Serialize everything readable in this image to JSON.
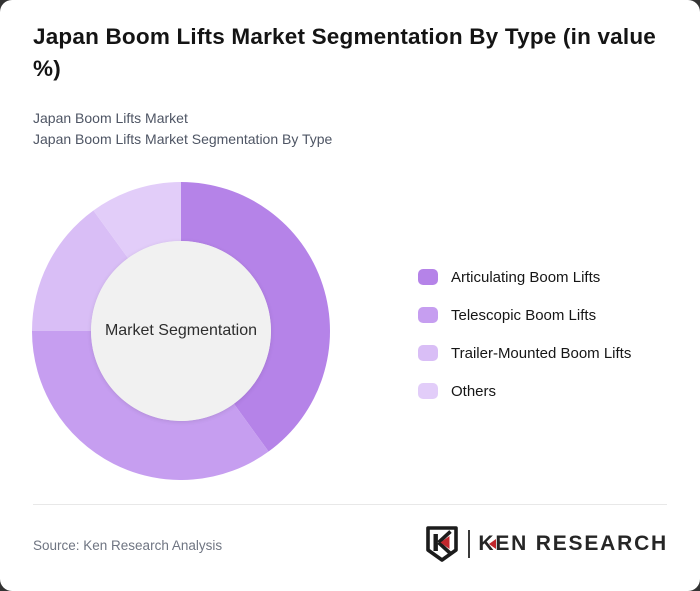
{
  "card": {
    "title": "Japan Boom Lifts Market Segmentation By Type (in value %)",
    "subtitle_line1": "Japan Boom Lifts Market",
    "subtitle_line2": "Japan Boom Lifts Market Segmentation By Type"
  },
  "chart_data": {
    "type": "pie",
    "style": "donut",
    "title": "Market Segmentation",
    "center_label": "Market Segmentation",
    "start_angle_deg": 0,
    "direction": "clockwise",
    "legend_position": "right",
    "inner_circle_color": "#f1f1f1",
    "segments": [
      {
        "label": "Articulating Boom Lifts",
        "value": 40,
        "color": "#b583e8"
      },
      {
        "label": "Telescopic Boom Lifts",
        "value": 35,
        "color": "#c69ef0"
      },
      {
        "label": "Trailer-Mounted Boom Lifts",
        "value": 15,
        "color": "#d9bef6"
      },
      {
        "label": "Others",
        "value": 10,
        "color": "#e2cdf9"
      }
    ]
  },
  "footer": {
    "source": "Source: Ken Research Analysis",
    "logo": {
      "text_k": "K",
      "text_rest": "EN RESEARCH",
      "brand_red": "#c1272d",
      "ink": "#1c1c1c"
    }
  }
}
